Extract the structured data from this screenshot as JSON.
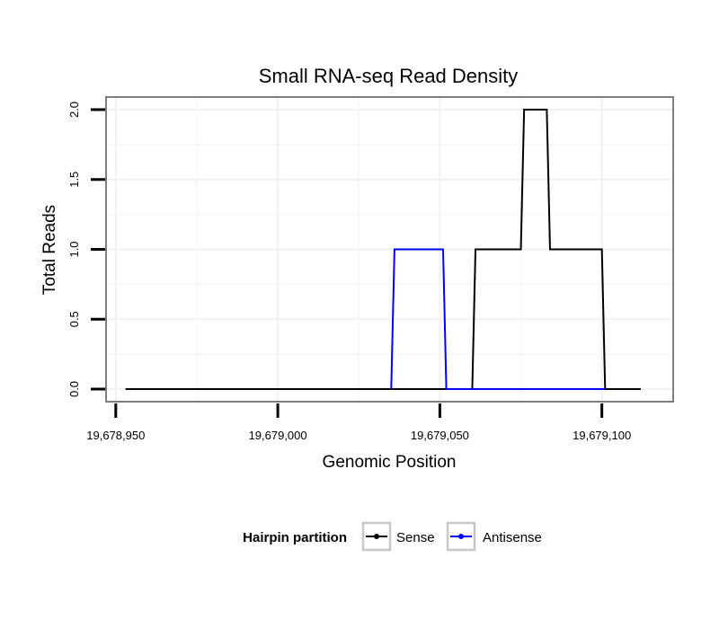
{
  "chart_data": {
    "type": "line",
    "title": "Small RNA-seq Read Density",
    "xlabel": "Genomic Position",
    "ylabel": "Total Reads",
    "xlim": [
      19678947,
      19679122
    ],
    "ylim": [
      -0.09,
      2.09
    ],
    "xticks": [
      19678950,
      19679000,
      19679050,
      19679100
    ],
    "xtick_labels": [
      "19,678,950",
      "19,679,000",
      "19,679,050",
      "19,679,100"
    ],
    "yticks": [
      0,
      0.5,
      1,
      1.5,
      2
    ],
    "ytick_labels": [
      "0.0",
      "0.5",
      "1.0",
      "1.5",
      "2.0"
    ],
    "grid": true,
    "legend": {
      "title": "Hairpin partition",
      "position": "bottom"
    },
    "series": [
      {
        "name": "Sense",
        "color": "#000000",
        "x": [
          19678953,
          19679060,
          19679061,
          19679075,
          19679076,
          19679083,
          19679084,
          19679100,
          19679101,
          19679112
        ],
        "y": [
          0,
          0,
          1,
          1,
          2,
          2,
          1,
          1,
          0,
          0
        ]
      },
      {
        "name": "Antisense",
        "color": "#0000ff",
        "x": [
          19679035,
          19679036,
          19679051,
          19679052,
          19679101
        ],
        "y": [
          0,
          1,
          1,
          0,
          0
        ]
      }
    ]
  }
}
